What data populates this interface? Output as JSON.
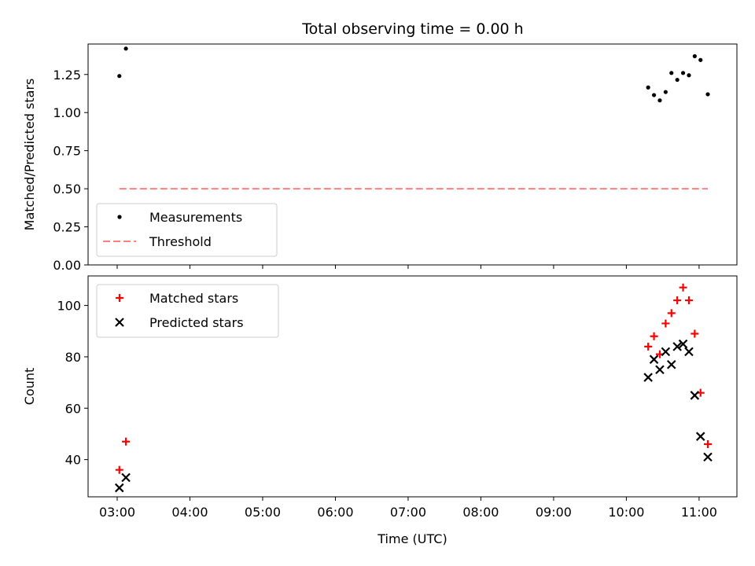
{
  "figure": {
    "title": "Total observing time = 0.00 h"
  },
  "chart_data": [
    {
      "type": "scatter",
      "ylabel": "Matched/Predicted stars",
      "ylim": [
        0.0,
        1.45
      ],
      "yticks": [
        0.0,
        0.25,
        0.5,
        0.75,
        1.0,
        1.25
      ],
      "ytick_labels": [
        "0.00",
        "0.25",
        "0.50",
        "0.75",
        "1.00",
        "1.25"
      ],
      "xlim": [
        2.6,
        11.52
      ],
      "xticks": [
        3,
        4,
        5,
        6,
        7,
        8,
        9,
        10,
        11
      ],
      "show_xtick_labels": false,
      "legend_placement": "lower-left",
      "series": [
        {
          "name": "Measurements",
          "kind": "dot",
          "color": "#000000",
          "points": [
            [
              3.03,
              1.24
            ],
            [
              3.12,
              1.42
            ],
            [
              10.3,
              1.165
            ],
            [
              10.38,
              1.115
            ],
            [
              10.46,
              1.08
            ],
            [
              10.54,
              1.135
            ],
            [
              10.62,
              1.26
            ],
            [
              10.7,
              1.215
            ],
            [
              10.78,
              1.26
            ],
            [
              10.86,
              1.245
            ],
            [
              10.94,
              1.37
            ],
            [
              11.02,
              1.345
            ],
            [
              11.12,
              1.12
            ]
          ]
        },
        {
          "name": "Threshold",
          "kind": "dashed-line",
          "color": "#ff7f7f",
          "points": [
            [
              3.03,
              0.5
            ],
            [
              11.12,
              0.5
            ]
          ]
        }
      ]
    },
    {
      "type": "scatter",
      "ylabel": "Count",
      "xlabel": "Time (UTC)",
      "ylim": [
        25.5,
        111.5
      ],
      "yticks": [
        40,
        60,
        80,
        100
      ],
      "ytick_labels": [
        "40",
        "60",
        "80",
        "100"
      ],
      "xlim": [
        2.6,
        11.52
      ],
      "xticks": [
        3,
        4,
        5,
        6,
        7,
        8,
        9,
        10,
        11
      ],
      "xtick_labels": [
        "03:00",
        "04:00",
        "05:00",
        "06:00",
        "07:00",
        "08:00",
        "09:00",
        "10:00",
        "11:00"
      ],
      "show_xtick_labels": true,
      "legend_placement": "upper-left",
      "series": [
        {
          "name": "Matched stars",
          "kind": "plus",
          "color": "#ff0000",
          "points": [
            [
              3.03,
              36
            ],
            [
              3.12,
              47
            ],
            [
              10.3,
              84
            ],
            [
              10.38,
              88
            ],
            [
              10.46,
              81
            ],
            [
              10.54,
              93
            ],
            [
              10.62,
              97
            ],
            [
              10.7,
              102
            ],
            [
              10.78,
              107
            ],
            [
              10.86,
              102
            ],
            [
              10.94,
              89
            ],
            [
              11.02,
              66
            ],
            [
              11.12,
              46
            ]
          ]
        },
        {
          "name": "Predicted stars",
          "kind": "cross",
          "color": "#000000",
          "points": [
            [
              3.03,
              29
            ],
            [
              3.12,
              33
            ],
            [
              10.3,
              72
            ],
            [
              10.38,
              79
            ],
            [
              10.46,
              75
            ],
            [
              10.54,
              82
            ],
            [
              10.62,
              77
            ],
            [
              10.7,
              84
            ],
            [
              10.78,
              85
            ],
            [
              10.86,
              82
            ],
            [
              10.94,
              65
            ],
            [
              11.02,
              49
            ],
            [
              11.12,
              41
            ]
          ]
        }
      ]
    }
  ]
}
